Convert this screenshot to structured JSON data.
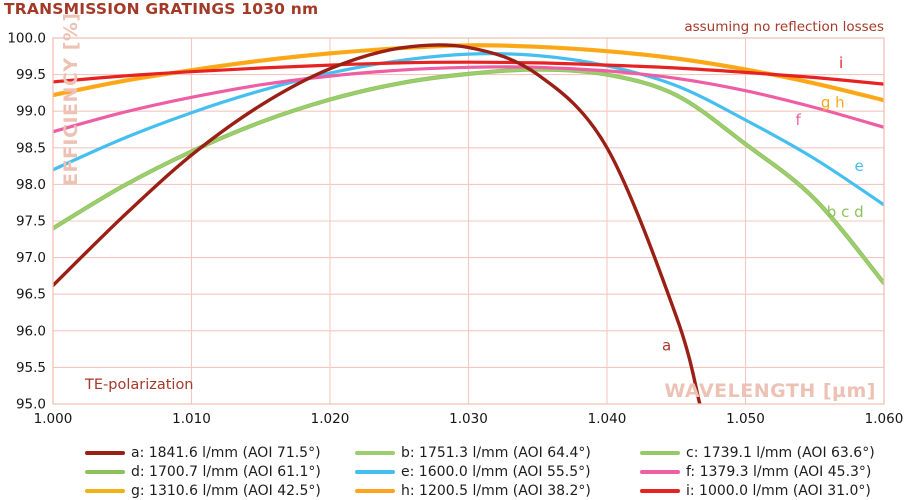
{
  "title": "TRANSMISSION GRATINGS 1030 nm",
  "subtitle": "assuming no reflection losses",
  "annotations": {
    "polarization": "TE-polarization"
  },
  "colors": {
    "title_text": "#A33A27",
    "grid": "#F4C8BE",
    "pale_axis_label": "#EDC2B5",
    "tick_text": "#161616"
  },
  "chart_data": {
    "type": "line",
    "title": "TRANSMISSION GRATINGS 1030 nm",
    "xlabel": "WAVELENGTH [µm]",
    "ylabel": "EFFICIENCY [%]",
    "xlim": [
      1.0,
      1.06
    ],
    "ylim": [
      95.0,
      100.0
    ],
    "grid": true,
    "legend_position": "bottom",
    "x_ticks": [
      "1.000",
      "1.010",
      "1.020",
      "1.030",
      "1.040",
      "1.050",
      "1.060"
    ],
    "y_ticks": [
      "100.0",
      "99.5",
      "99.0",
      "98.5",
      "98.0",
      "97.5",
      "97.0",
      "96.5",
      "96.0",
      "95.5",
      "95.0"
    ],
    "series": [
      {
        "id": "a",
        "label": "a: 1841.6 l/mm (AOI 71.5°)",
        "color": "#9A1F15",
        "x": [
          1.0,
          1.005,
          1.01,
          1.015,
          1.02,
          1.025,
          1.03,
          1.035,
          1.04,
          1.045,
          1.0467
        ],
        "values": [
          96.62,
          97.55,
          98.4,
          99.08,
          99.58,
          99.86,
          99.87,
          99.5,
          98.5,
          96.2,
          95.0
        ]
      },
      {
        "id": "b",
        "label": "b: 1751.3 l/mm (AOI 64.4°)",
        "color": "#9CCD6E",
        "x": [
          1.0,
          1.005,
          1.01,
          1.015,
          1.02,
          1.025,
          1.03,
          1.035,
          1.04,
          1.045,
          1.05,
          1.055,
          1.06
        ],
        "values": [
          97.4,
          97.97,
          98.45,
          98.85,
          99.16,
          99.38,
          99.51,
          99.57,
          99.5,
          99.22,
          98.55,
          97.8,
          96.65
        ]
      },
      {
        "id": "c",
        "label": "c: 1739.1 l/mm (AOI 63.6°)",
        "color": "#96C966",
        "x": [
          1.0,
          1.005,
          1.01,
          1.015,
          1.02,
          1.025,
          1.03,
          1.035,
          1.04,
          1.045,
          1.05,
          1.055,
          1.06
        ],
        "values": [
          97.4,
          97.97,
          98.45,
          98.85,
          99.16,
          99.38,
          99.51,
          99.57,
          99.5,
          99.22,
          98.55,
          97.8,
          96.65
        ]
      },
      {
        "id": "d",
        "label": "d: 1700.7 l/mm (AOI 61.1°)",
        "color": "#8CC25B",
        "x": [
          1.0,
          1.005,
          1.01,
          1.015,
          1.02,
          1.025,
          1.03,
          1.035,
          1.04,
          1.045,
          1.05,
          1.055,
          1.06
        ],
        "values": [
          97.4,
          97.97,
          98.45,
          98.85,
          99.16,
          99.38,
          99.51,
          99.57,
          99.5,
          99.22,
          98.55,
          97.8,
          96.65
        ]
      },
      {
        "id": "e",
        "label": "e: 1600.0 l/mm (AOI 55.5°)",
        "color": "#44BFF0",
        "x": [
          1.0,
          1.005,
          1.01,
          1.015,
          1.02,
          1.025,
          1.03,
          1.035,
          1.04,
          1.045,
          1.05,
          1.055,
          1.06
        ],
        "values": [
          98.2,
          98.62,
          98.98,
          99.28,
          99.52,
          99.69,
          99.78,
          99.76,
          99.62,
          99.35,
          98.88,
          98.35,
          97.72
        ]
      },
      {
        "id": "f",
        "label": "f: 1379.3 l/mm (AOI 45.3°)",
        "color": "#EE5EA5",
        "x": [
          1.0,
          1.005,
          1.01,
          1.015,
          1.02,
          1.025,
          1.03,
          1.035,
          1.04,
          1.045,
          1.05,
          1.055,
          1.06
        ],
        "values": [
          98.72,
          98.98,
          99.19,
          99.36,
          99.48,
          99.56,
          99.6,
          99.6,
          99.55,
          99.45,
          99.28,
          99.05,
          98.78
        ]
      },
      {
        "id": "g",
        "label": "g: 1310.6 l/mm (AOI 42.5°)",
        "color": "#F3B214",
        "x": [
          1.0,
          1.005,
          1.01,
          1.015,
          1.02,
          1.025,
          1.03,
          1.035,
          1.04,
          1.045,
          1.05,
          1.055,
          1.06
        ],
        "values": [
          99.22,
          99.41,
          99.56,
          99.69,
          99.79,
          99.86,
          99.9,
          99.88,
          99.82,
          99.72,
          99.57,
          99.38,
          99.15
        ]
      },
      {
        "id": "h",
        "label": "h: 1200.5 l/mm (AOI 38.2°)",
        "color": "#FFA41C",
        "x": [
          1.0,
          1.005,
          1.01,
          1.015,
          1.02,
          1.025,
          1.03,
          1.035,
          1.04,
          1.045,
          1.05,
          1.055,
          1.06
        ],
        "values": [
          99.22,
          99.41,
          99.56,
          99.69,
          99.79,
          99.86,
          99.9,
          99.88,
          99.82,
          99.72,
          99.57,
          99.38,
          99.15
        ]
      },
      {
        "id": "i",
        "label": "i: 1000.0 l/mm (AOI 31.0°)",
        "color": "#E62222",
        "x": [
          1.0,
          1.005,
          1.01,
          1.015,
          1.02,
          1.025,
          1.03,
          1.035,
          1.04,
          1.045,
          1.05,
          1.055,
          1.06
        ],
        "values": [
          99.4,
          99.48,
          99.54,
          99.59,
          99.63,
          99.66,
          99.67,
          99.66,
          99.63,
          99.59,
          99.53,
          99.46,
          99.37
        ]
      }
    ],
    "curve_labels": [
      {
        "text": "i",
        "color": "#E62222",
        "x": 1.0569,
        "y": 99.66
      },
      {
        "text": "g h",
        "color": "#F6A81A",
        "x": 1.0563,
        "y": 99.12
      },
      {
        "text": "f",
        "color": "#EE5EA5",
        "x": 1.0538,
        "y": 98.88
      },
      {
        "text": "e",
        "color": "#44BFF0",
        "x": 1.0582,
        "y": 98.25
      },
      {
        "text": "b c d",
        "color": "#8CC25B",
        "x": 1.0572,
        "y": 97.62
      },
      {
        "text": "a",
        "color": "#A6392A",
        "x": 1.0443,
        "y": 95.8
      }
    ]
  }
}
